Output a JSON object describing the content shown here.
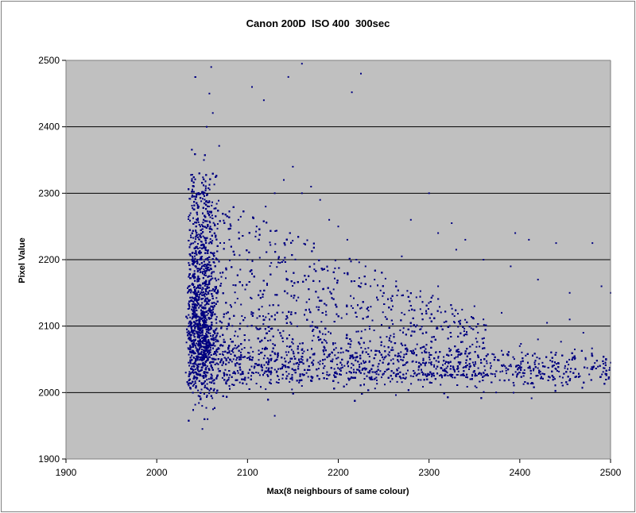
{
  "chart_data": {
    "type": "scatter",
    "title": "Canon 200D  ISO 400  300sec",
    "xlabel": "Max(8 neighbours of same colour)",
    "ylabel": "Pixel Value",
    "xlim": [
      1900,
      2500
    ],
    "ylim": [
      1900,
      2500
    ],
    "xticks": [
      1900,
      2000,
      2100,
      2200,
      2300,
      2400,
      2500
    ],
    "yticks": [
      1900,
      2000,
      2100,
      2200,
      2300,
      2400,
      2500
    ],
    "grid": "horizontal major gridlines",
    "legend": "none",
    "colors": {
      "plot_background": "#c0c0c0",
      "marker": "#000080",
      "gridline": "#000000"
    },
    "series": [
      {
        "marker": "small diamond",
        "points": [
          [
            2032,
            2030
          ],
          [
            2035,
            2045
          ],
          [
            2038,
            2060
          ],
          [
            2040,
            2100
          ],
          [
            2042,
            2150
          ],
          [
            2045,
            2200
          ],
          [
            2048,
            2250
          ],
          [
            2050,
            2300
          ],
          [
            2052,
            2350
          ],
          [
            2055,
            2400
          ],
          [
            2058,
            2450
          ],
          [
            2060,
            2490
          ],
          [
            2046,
            1995
          ],
          [
            2050,
            1980
          ],
          [
            2056,
            1960
          ],
          [
            2062,
            1975
          ],
          [
            2040,
            2010
          ],
          [
            2044,
            2020
          ],
          [
            2060,
            2120
          ],
          [
            2070,
            2180
          ],
          [
            2080,
            2230
          ],
          [
            2090,
            2260
          ],
          [
            2100,
            2200
          ],
          [
            2110,
            2250
          ],
          [
            2120,
            2280
          ],
          [
            2130,
            2300
          ],
          [
            2140,
            2320
          ],
          [
            2150,
            2340
          ],
          [
            2160,
            2300
          ],
          [
            2170,
            2310
          ],
          [
            2180,
            2290
          ],
          [
            2190,
            2260
          ],
          [
            2200,
            2250
          ],
          [
            2210,
            2230
          ],
          [
            2220,
            2200
          ],
          [
            2230,
            2190
          ],
          [
            2240,
            2170
          ],
          [
            2250,
            2150
          ],
          [
            2260,
            2130
          ],
          [
            2270,
            2120
          ],
          [
            2280,
            2100
          ],
          [
            2290,
            2095
          ],
          [
            2100,
            2100
          ],
          [
            2150,
            2080
          ],
          [
            2200,
            2060
          ],
          [
            2250,
            2050
          ],
          [
            2300,
            2045
          ],
          [
            2350,
            2040
          ],
          [
            2400,
            2040
          ],
          [
            2450,
            2040
          ],
          [
            2500,
            2045
          ],
          [
            2080,
            2010
          ],
          [
            2120,
            2005
          ],
          [
            2160,
            2010
          ],
          [
            2200,
            2015
          ],
          [
            2240,
            2020
          ],
          [
            2280,
            2025
          ],
          [
            2320,
            2030
          ],
          [
            2360,
            2030
          ],
          [
            2400,
            2030
          ],
          [
            2440,
            2035
          ],
          [
            2480,
            2035
          ],
          [
            2130,
            1965
          ],
          [
            2145,
            2475
          ],
          [
            2160,
            2495
          ],
          [
            2225,
            2480
          ],
          [
            2215,
            2452
          ],
          [
            2105,
            2460
          ],
          [
            2118,
            2440
          ],
          [
            2300,
            2300
          ],
          [
            2325,
            2255
          ],
          [
            2340,
            2230
          ],
          [
            2410,
            2230
          ],
          [
            2440,
            2225
          ],
          [
            2480,
            2225
          ],
          [
            2395,
            2240
          ],
          [
            2420,
            2170
          ],
          [
            2455,
            2150
          ],
          [
            2490,
            2160
          ],
          [
            2500,
            2150
          ],
          [
            2390,
            2190
          ],
          [
            2360,
            2200
          ],
          [
            2330,
            2215
          ],
          [
            2310,
            2240
          ],
          [
            2280,
            2260
          ],
          [
            2270,
            2205
          ],
          [
            2310,
            2160
          ],
          [
            2350,
            2130
          ],
          [
            2380,
            2120
          ],
          [
            2430,
            2105
          ],
          [
            2470,
            2090
          ],
          [
            2455,
            2110
          ],
          [
            2420,
            2080
          ],
          [
            2400,
            2070
          ],
          [
            2440,
            2060
          ],
          [
            2480,
            2055
          ]
        ]
      }
    ]
  }
}
